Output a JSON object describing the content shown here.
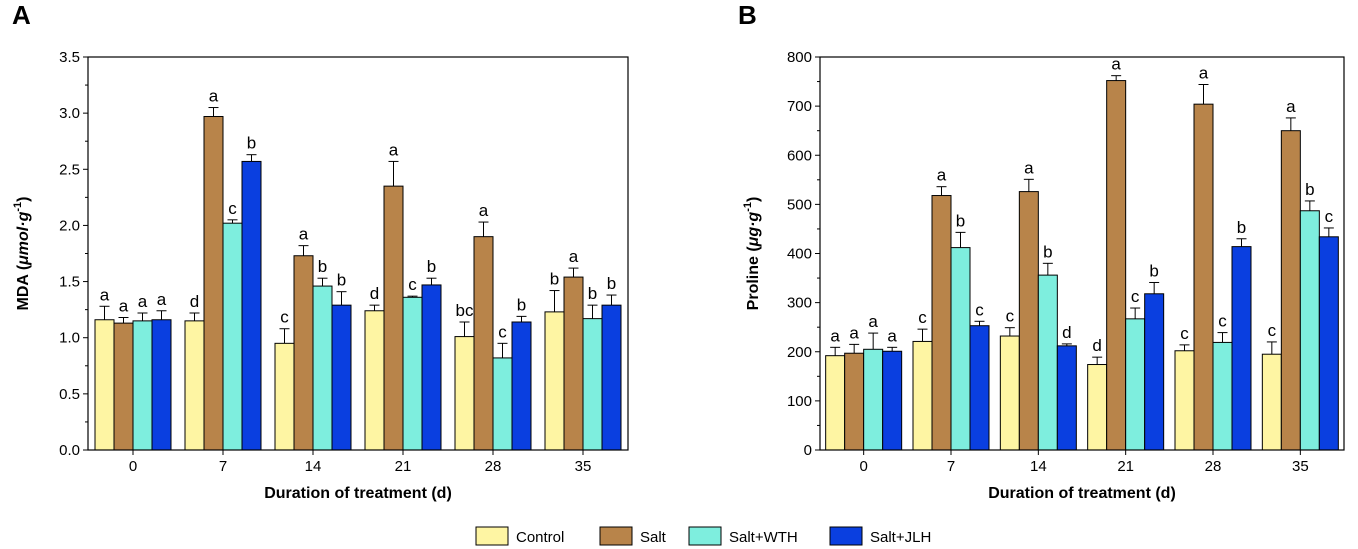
{
  "legend": [
    "Control",
    "Salt",
    "Salt+WTH",
    "Salt+JLH"
  ],
  "colors": {
    "Control": "#fef5a3",
    "Salt": "#b8844a",
    "Salt+WTH": "#7eeede",
    "Salt+JLH": "#0a3fe0"
  },
  "chart_data": [
    {
      "type": "bar",
      "panel": "A",
      "title": "",
      "xlabel": "Duration of treatment (d)",
      "ylabel_prefix": "MDA (",
      "ylabel_unit": "μmol·g",
      "ylabel_sup": "-1",
      "ylabel_suffix": ")",
      "categories": [
        "0",
        "7",
        "14",
        "21",
        "28",
        "35"
      ],
      "ylim": [
        0,
        3.5
      ],
      "yticks": [
        "0.0",
        "0.5",
        "1.0",
        "1.5",
        "2.0",
        "2.5",
        "3.0",
        "3.5"
      ],
      "series": [
        {
          "name": "Control",
          "values": [
            1.16,
            1.15,
            0.95,
            1.24,
            1.01,
            1.23
          ],
          "errors": [
            0.12,
            0.07,
            0.13,
            0.05,
            0.13,
            0.19
          ],
          "letters": [
            "a",
            "d",
            "c",
            "d",
            "bc",
            "b"
          ]
        },
        {
          "name": "Salt",
          "values": [
            1.13,
            2.97,
            1.73,
            2.35,
            1.9,
            1.54
          ],
          "errors": [
            0.05,
            0.08,
            0.09,
            0.22,
            0.13,
            0.08
          ],
          "letters": [
            "a",
            "a",
            "a",
            "a",
            "a",
            "a"
          ]
        },
        {
          "name": "Salt+WTH",
          "values": [
            1.15,
            2.02,
            1.46,
            1.36,
            0.82,
            1.17
          ],
          "errors": [
            0.07,
            0.03,
            0.07,
            0.01,
            0.13,
            0.12
          ],
          "letters": [
            "a",
            "c",
            "b",
            "c",
            "c",
            "b"
          ]
        },
        {
          "name": "Salt+JLH",
          "values": [
            1.16,
            2.57,
            1.29,
            1.47,
            1.14,
            1.29
          ],
          "errors": [
            0.08,
            0.06,
            0.12,
            0.06,
            0.05,
            0.09
          ],
          "letters": [
            "a",
            "b",
            "b",
            "b",
            "b",
            "b"
          ]
        }
      ]
    },
    {
      "type": "bar",
      "panel": "B",
      "title": "",
      "xlabel": "Duration of treatment (d)",
      "ylabel_prefix": "Proline (",
      "ylabel_unit": "μg·g",
      "ylabel_sup": "-1",
      "ylabel_suffix": ")",
      "categories": [
        "0",
        "7",
        "14",
        "21",
        "28",
        "35"
      ],
      "ylim": [
        0,
        800
      ],
      "yticks": [
        "0",
        "100",
        "200",
        "300",
        "400",
        "500",
        "600",
        "700",
        "800"
      ],
      "series": [
        {
          "name": "Control",
          "values": [
            192,
            221,
            232,
            174,
            202,
            195
          ],
          "errors": [
            17,
            25,
            17,
            15,
            12,
            25
          ],
          "letters": [
            "a",
            "c",
            "c",
            "d",
            "c",
            "c"
          ]
        },
        {
          "name": "Salt",
          "values": [
            197,
            518,
            526,
            752,
            704,
            650
          ],
          "errors": [
            18,
            18,
            25,
            10,
            40,
            26
          ],
          "letters": [
            "a",
            "a",
            "a",
            "a",
            "a",
            "a"
          ]
        },
        {
          "name": "Salt+WTH",
          "values": [
            205,
            412,
            356,
            267,
            219,
            487
          ],
          "errors": [
            33,
            31,
            24,
            22,
            20,
            20
          ],
          "letters": [
            "a",
            "b",
            "b",
            "c",
            "c",
            "b"
          ]
        },
        {
          "name": "Salt+JLH",
          "values": [
            201,
            253,
            212,
            318,
            414,
            434
          ],
          "errors": [
            8,
            9,
            4,
            23,
            16,
            18
          ],
          "letters": [
            "a",
            "c",
            "d",
            "b",
            "b",
            "c"
          ]
        }
      ]
    }
  ]
}
